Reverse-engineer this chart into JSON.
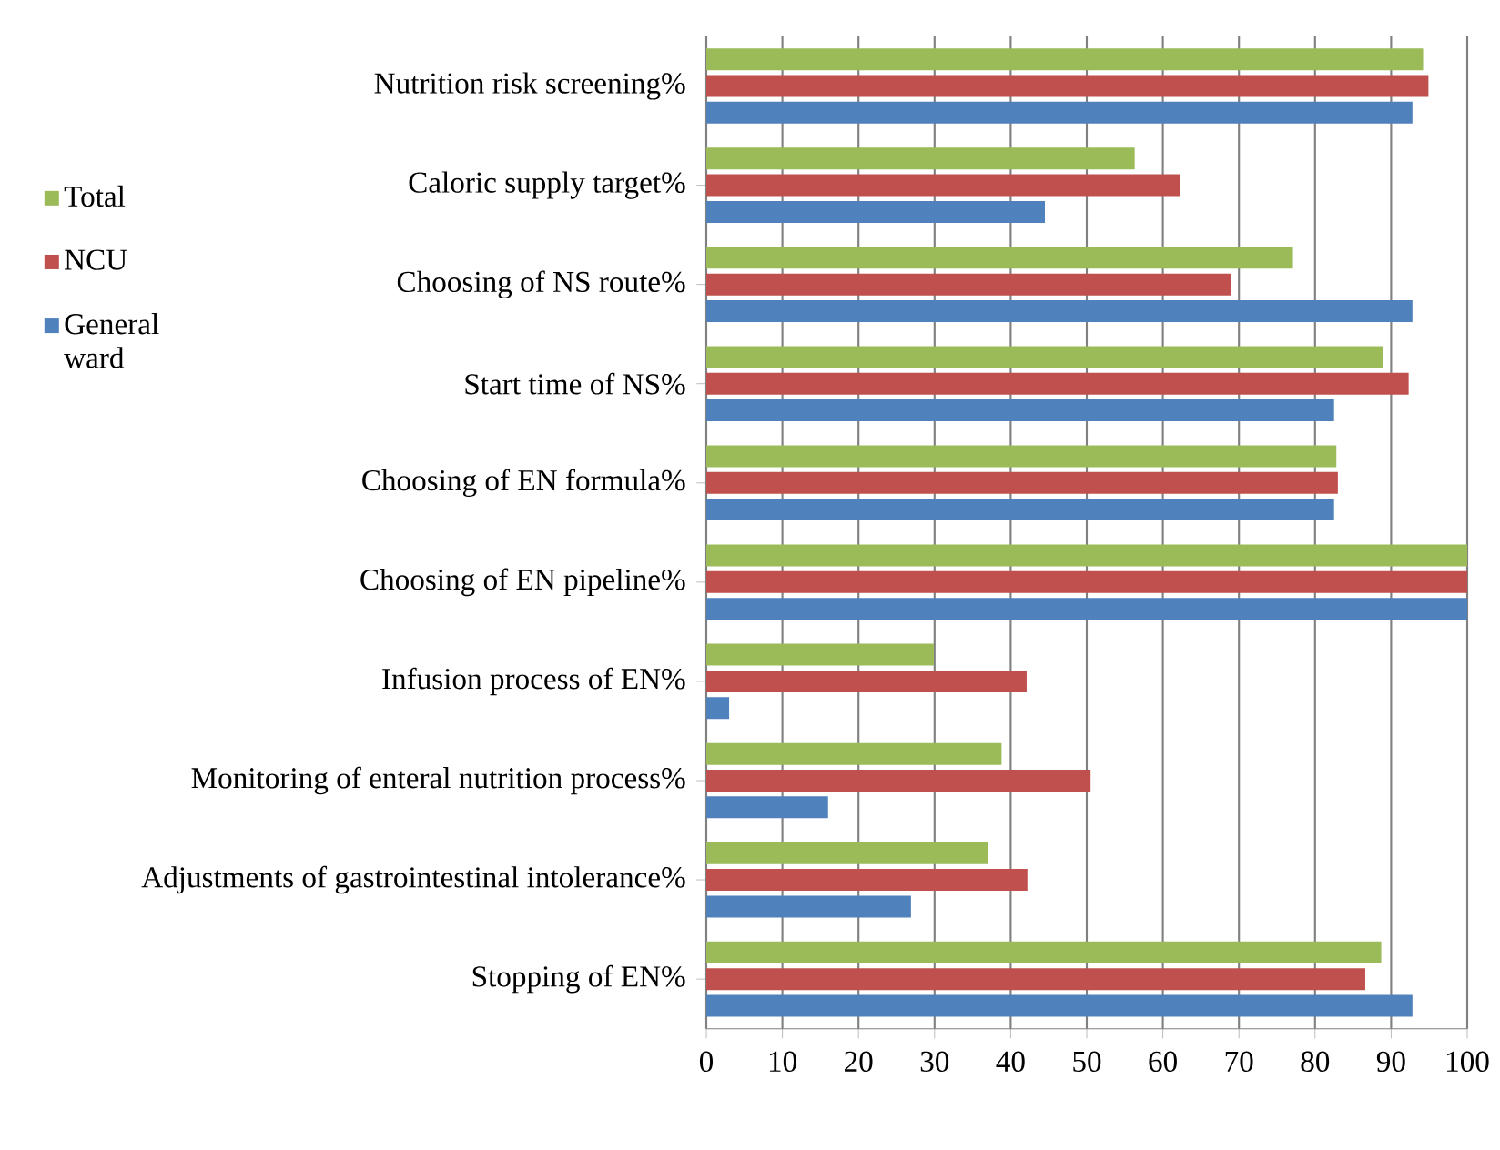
{
  "chart_data": {
    "type": "bar",
    "orientation": "horizontal",
    "categories": [
      "Nutrition risk screening%",
      "Caloric supply target%",
      "Choosing of NS route%",
      "Start time of NS%",
      "Choosing of EN formula%",
      "Choosing of EN pipeline%",
      "Infusion process of EN%",
      "Monitoring of enteral nutrition process%",
      "Adjustments of gastrointestinal intolerance%",
      "Stopping of EN%"
    ],
    "series": [
      {
        "name": "General ward",
        "color": "#4f81bd",
        "values": [
          92.8,
          44.5,
          92.8,
          82.5,
          82.5,
          100,
          3.0,
          16.0,
          26.9,
          92.8
        ]
      },
      {
        "name": "NCU",
        "color": "#c0504d",
        "values": [
          94.9,
          62.2,
          68.9,
          92.3,
          83.0,
          100,
          42.1,
          50.5,
          42.2,
          86.6
        ]
      },
      {
        "name": "Total",
        "color": "#9bbb59",
        "values": [
          94.2,
          56.3,
          77.1,
          88.9,
          82.8,
          100,
          29.9,
          38.8,
          37.0,
          88.7
        ]
      }
    ],
    "xlim": [
      0,
      100
    ],
    "xticks": [
      0,
      10,
      20,
      30,
      40,
      50,
      60,
      70,
      80,
      90,
      100
    ],
    "grid": "x",
    "legend": "left"
  }
}
